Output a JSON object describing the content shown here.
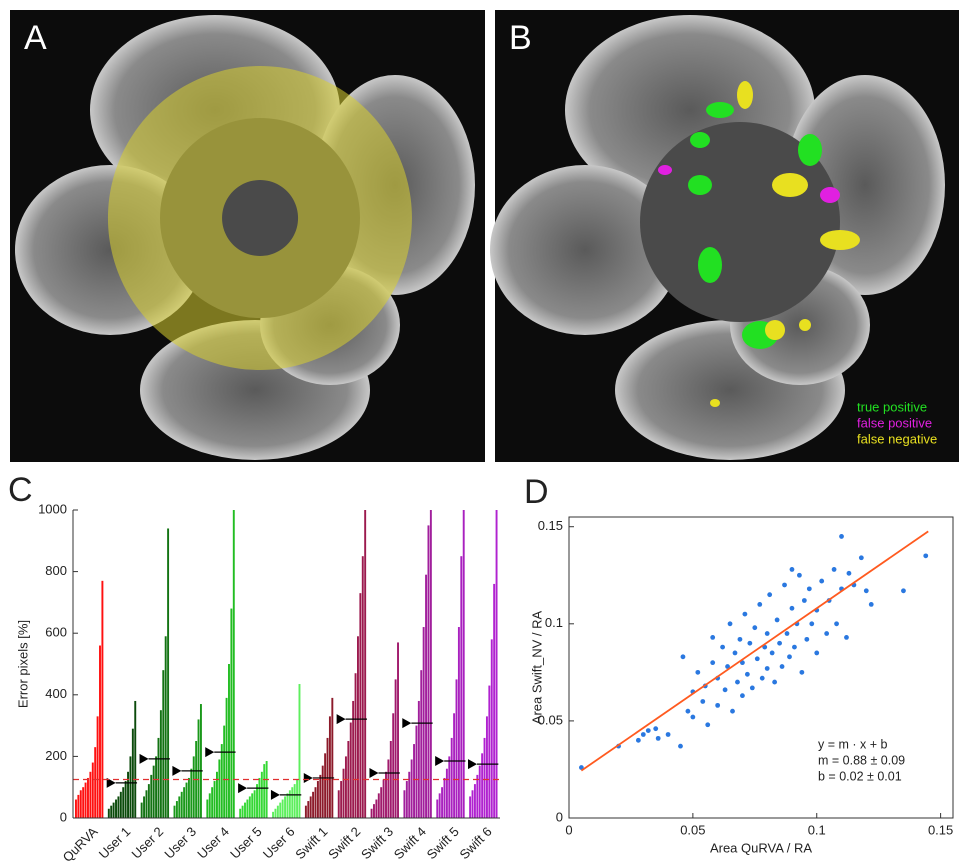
{
  "panels": {
    "A": {
      "label": "A"
    },
    "B": {
      "label": "B",
      "legend": [
        {
          "name": "true positive",
          "color": "#22e022"
        },
        {
          "name": "false positive",
          "color": "#e020e0"
        },
        {
          "name": "false negative",
          "color": "#e8e020"
        }
      ]
    }
  },
  "chart_data": [
    {
      "type": "bar",
      "panel_label": "C",
      "ylabel": "Error pixels [%]",
      "ylim": [
        0,
        1000
      ],
      "yticks": [
        0,
        200,
        400,
        600,
        800,
        1000
      ],
      "reference_line": 125,
      "reference_color": "#e03030",
      "series": [
        {
          "name": "QuRVA",
          "color": "#ff1010",
          "values": [
            60,
            75,
            90,
            100,
            115,
            130,
            150,
            180,
            230,
            330,
            560,
            770
          ]
        },
        {
          "name": "User 1",
          "color": "#0b4a0b",
          "mean": 114,
          "values": [
            30,
            40,
            50,
            60,
            70,
            85,
            100,
            120,
            150,
            200,
            290,
            380
          ]
        },
        {
          "name": "User 2",
          "color": "#137313",
          "mean": 192,
          "values": [
            50,
            70,
            90,
            110,
            140,
            170,
            200,
            260,
            350,
            480,
            590,
            940
          ]
        },
        {
          "name": "User 3",
          "color": "#1a981a",
          "mean": 153,
          "values": [
            40,
            55,
            70,
            85,
            100,
            115,
            130,
            160,
            200,
            250,
            320,
            370
          ]
        },
        {
          "name": "User 4",
          "color": "#22bd22",
          "mean": 214,
          "values": [
            60,
            80,
            100,
            120,
            150,
            190,
            240,
            300,
            390,
            500,
            680,
            1000
          ]
        },
        {
          "name": "User 5",
          "color": "#35d835",
          "mean": 97,
          "values": [
            30,
            40,
            50,
            60,
            70,
            80,
            90,
            110,
            130,
            150,
            175,
            185
          ]
        },
        {
          "name": "User 6",
          "color": "#5eef5e",
          "mean": 75,
          "values": [
            20,
            30,
            40,
            50,
            60,
            70,
            80,
            90,
            100,
            110,
            125,
            435
          ]
        },
        {
          "name": "Swift 1",
          "color": "#8c1a2a",
          "mean": 130,
          "values": [
            40,
            55,
            70,
            85,
            100,
            120,
            140,
            170,
            210,
            260,
            330,
            390
          ]
        },
        {
          "name": "Swift 2",
          "color": "#9c1a4e",
          "mean": 321,
          "values": [
            90,
            120,
            160,
            200,
            250,
            310,
            380,
            470,
            590,
            730,
            850,
            1000
          ]
        },
        {
          "name": "Swift 3",
          "color": "#a01a6c",
          "mean": 146,
          "values": [
            30,
            45,
            60,
            80,
            100,
            125,
            150,
            190,
            250,
            340,
            450,
            570
          ]
        },
        {
          "name": "Swift 4",
          "color": "#a11f9c",
          "mean": 308,
          "values": [
            90,
            120,
            150,
            190,
            240,
            300,
            380,
            480,
            620,
            790,
            950,
            1000
          ]
        },
        {
          "name": "Swift 5",
          "color": "#a921bf",
          "mean": 185,
          "values": [
            60,
            80,
            100,
            130,
            160,
            200,
            260,
            340,
            450,
            620,
            850,
            1000
          ]
        },
        {
          "name": "Swift 6",
          "color": "#b022d0",
          "mean": 175,
          "values": [
            70,
            90,
            110,
            140,
            170,
            210,
            260,
            330,
            430,
            580,
            760,
            1000
          ]
        }
      ]
    },
    {
      "type": "scatter",
      "panel_label": "D",
      "xlabel": "Area QuRVA / RA",
      "ylabel": "Area Swift_NV / RA",
      "xlim": [
        0,
        0.155
      ],
      "ylim": [
        0,
        0.155
      ],
      "xticks": [
        0,
        0.05,
        0.1,
        0.15
      ],
      "yticks": [
        0,
        0.05,
        0.1,
        0.15
      ],
      "color": "#2a78e0",
      "x": [
        0.005,
        0.02,
        0.028,
        0.03,
        0.032,
        0.035,
        0.036,
        0.04,
        0.045,
        0.046,
        0.048,
        0.05,
        0.05,
        0.052,
        0.054,
        0.055,
        0.056,
        0.058,
        0.058,
        0.06,
        0.06,
        0.062,
        0.063,
        0.064,
        0.065,
        0.066,
        0.067,
        0.068,
        0.069,
        0.07,
        0.07,
        0.071,
        0.072,
        0.073,
        0.074,
        0.075,
        0.076,
        0.077,
        0.078,
        0.079,
        0.08,
        0.08,
        0.081,
        0.082,
        0.083,
        0.084,
        0.085,
        0.086,
        0.087,
        0.088,
        0.089,
        0.09,
        0.09,
        0.091,
        0.092,
        0.093,
        0.094,
        0.095,
        0.096,
        0.097,
        0.098,
        0.1,
        0.1,
        0.102,
        0.104,
        0.105,
        0.107,
        0.108,
        0.11,
        0.11,
        0.112,
        0.113,
        0.115,
        0.118,
        0.12,
        0.122,
        0.135,
        0.144
      ],
      "y": [
        0.026,
        0.037,
        0.04,
        0.043,
        0.045,
        0.046,
        0.041,
        0.043,
        0.037,
        0.083,
        0.055,
        0.052,
        0.065,
        0.075,
        0.06,
        0.068,
        0.048,
        0.08,
        0.093,
        0.058,
        0.072,
        0.088,
        0.066,
        0.078,
        0.1,
        0.055,
        0.085,
        0.07,
        0.092,
        0.063,
        0.08,
        0.105,
        0.074,
        0.09,
        0.067,
        0.098,
        0.082,
        0.11,
        0.072,
        0.088,
        0.077,
        0.095,
        0.115,
        0.085,
        0.07,
        0.102,
        0.09,
        0.078,
        0.12,
        0.095,
        0.083,
        0.108,
        0.128,
        0.088,
        0.1,
        0.125,
        0.075,
        0.112,
        0.092,
        0.118,
        0.1,
        0.085,
        0.107,
        0.122,
        0.095,
        0.112,
        0.128,
        0.1,
        0.145,
        0.118,
        0.093,
        0.126,
        0.12,
        0.134,
        0.117,
        0.11,
        0.117,
        0.135
      ],
      "fit": {
        "slope": 0.88,
        "intercept": 0.02,
        "x": [
          0.005,
          0.145
        ],
        "color": "#ff5a1f"
      },
      "annotations": [
        "y = m · x + b",
        "m = 0.88 ± 0.09",
        "b = 0.02 ± 0.01"
      ]
    }
  ]
}
